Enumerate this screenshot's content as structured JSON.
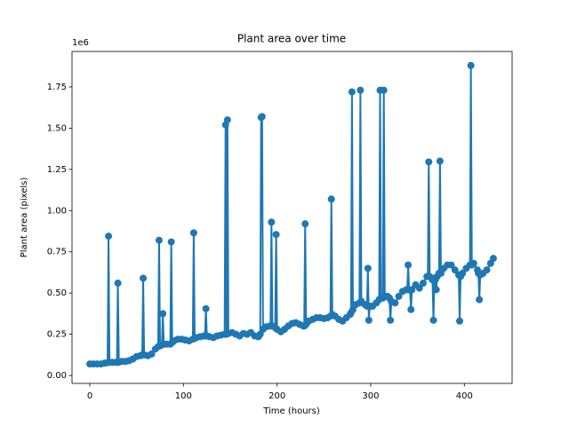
{
  "chart_data": {
    "type": "line",
    "title": "Plant area over time",
    "x_label": "Time (hours)",
    "y_label": "Plant area (pixels)",
    "y_offset_label": "1e6",
    "x": [
      0,
      4,
      8,
      12,
      16,
      19,
      20,
      21,
      24,
      28,
      29,
      30,
      31,
      34,
      38,
      42,
      46,
      50,
      54,
      56,
      57,
      58,
      62,
      66,
      70,
      73,
      74,
      75,
      77,
      78,
      79,
      82,
      86,
      87,
      88,
      90,
      94,
      98,
      102,
      106,
      110,
      111,
      112,
      114,
      118,
      122,
      123,
      124,
      125,
      128,
      132,
      136,
      140,
      144,
      145,
      146,
      147,
      148,
      152,
      156,
      160,
      164,
      168,
      172,
      176,
      180,
      182,
      183,
      184,
      185,
      188,
      192,
      193,
      194,
      195,
      198,
      199,
      200,
      204,
      208,
      212,
      216,
      220,
      224,
      228,
      229,
      230,
      231,
      234,
      238,
      242,
      246,
      250,
      254,
      257,
      258,
      259,
      262,
      266,
      270,
      274,
      278,
      279,
      280,
      281,
      284,
      288,
      289,
      290,
      294,
      296,
      297,
      298,
      299,
      302,
      306,
      309,
      310,
      311,
      313,
      314,
      315,
      318,
      320,
      321,
      322,
      326,
      330,
      334,
      338,
      339,
      340,
      341,
      342,
      343,
      344,
      348,
      352,
      356,
      360,
      361,
      362,
      363,
      366,
      367,
      368,
      369,
      370,
      371,
      373,
      374,
      375,
      378,
      382,
      386,
      390,
      394,
      395,
      396,
      398,
      402,
      406,
      407,
      408,
      410,
      414,
      415,
      416,
      417,
      420,
      424,
      428,
      431
    ],
    "series": [
      {
        "name": "Plant area",
        "color": "#1f77b4",
        "values": [
          0.07,
          0.07,
          0.07,
          0.07,
          0.075,
          0.078,
          0.845,
          0.08,
          0.08,
          0.08,
          0.08,
          0.56,
          0.08,
          0.085,
          0.085,
          0.09,
          0.1,
          0.115,
          0.12,
          0.125,
          0.59,
          0.125,
          0.12,
          0.13,
          0.16,
          0.175,
          0.82,
          0.18,
          0.185,
          0.375,
          0.19,
          0.19,
          0.19,
          0.81,
          0.2,
          0.21,
          0.22,
          0.22,
          0.215,
          0.21,
          0.22,
          0.865,
          0.225,
          0.23,
          0.235,
          0.24,
          0.24,
          0.405,
          0.24,
          0.235,
          0.23,
          0.24,
          0.245,
          0.25,
          1.52,
          0.25,
          1.55,
          0.255,
          0.26,
          0.25,
          0.24,
          0.255,
          0.25,
          0.26,
          0.24,
          0.235,
          0.25,
          1.565,
          1.57,
          0.28,
          0.295,
          0.3,
          0.3,
          0.93,
          0.3,
          0.29,
          0.855,
          0.28,
          0.265,
          0.28,
          0.3,
          0.315,
          0.32,
          0.31,
          0.3,
          0.3,
          0.92,
          0.31,
          0.33,
          0.34,
          0.35,
          0.35,
          0.345,
          0.35,
          0.36,
          1.07,
          0.37,
          0.36,
          0.34,
          0.33,
          0.35,
          0.37,
          0.38,
          1.72,
          0.4,
          0.43,
          0.44,
          1.73,
          0.45,
          0.43,
          0.42,
          0.65,
          0.335,
          0.42,
          0.42,
          0.44,
          0.46,
          1.73,
          0.47,
          0.47,
          1.73,
          0.48,
          0.48,
          0.47,
          0.335,
          0.45,
          0.44,
          0.48,
          0.51,
          0.52,
          0.52,
          0.67,
          0.52,
          0.52,
          0.4,
          0.52,
          0.55,
          0.53,
          0.56,
          0.6,
          0.6,
          1.295,
          0.6,
          0.58,
          0.335,
          0.59,
          0.58,
          0.52,
          0.6,
          0.62,
          1.3,
          0.62,
          0.65,
          0.67,
          0.67,
          0.64,
          0.61,
          0.33,
          0.6,
          0.62,
          0.65,
          0.67,
          1.88,
          0.67,
          0.68,
          0.64,
          0.62,
          0.46,
          0.61,
          0.62,
          0.64,
          0.68,
          0.71
        ]
      }
    ],
    "xlim": [
      -19,
      451
    ],
    "ylim": [
      -0.048,
      1.965
    ],
    "xticks": [
      0,
      100,
      200,
      300,
      400
    ],
    "yticks": [
      {
        "value": 0,
        "label": "0.00"
      },
      0.25,
      {
        "value": 0.5,
        "label": "0.50"
      },
      0.75,
      {
        "value": 1,
        "label": "1.00"
      },
      1.25,
      {
        "value": 1.5,
        "label": "1.50"
      },
      1.75
    ]
  }
}
